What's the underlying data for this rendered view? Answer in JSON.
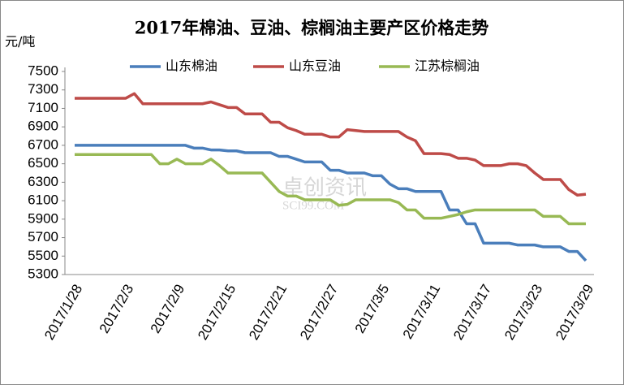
{
  "chart_data": {
    "type": "line",
    "title": "2017年棉油、豆油、棕榈油主要产区价格走势",
    "y_label": "元/吨",
    "watermark": [
      "卓创资讯",
      "SCI99.COM"
    ],
    "categories": [
      "2017/1/28",
      null,
      null,
      null,
      null,
      null,
      "2017/2/3",
      null,
      null,
      null,
      null,
      null,
      "2017/2/9",
      null,
      null,
      null,
      null,
      null,
      "2017/2/15",
      null,
      null,
      null,
      null,
      null,
      "2017/2/21",
      null,
      null,
      null,
      null,
      null,
      "2017/2/27",
      null,
      null,
      null,
      null,
      null,
      "2017/3/5",
      null,
      null,
      null,
      null,
      null,
      "2017/3/11",
      null,
      null,
      null,
      null,
      null,
      "2017/3/17",
      null,
      null,
      null,
      null,
      null,
      "2017/3/23",
      null,
      null,
      null,
      null,
      null,
      "2017/3/29"
    ],
    "series": [
      {
        "name": "山东棉油",
        "color": "#4a7ebb",
        "values": [
          6700,
          6700,
          6700,
          6700,
          6700,
          6700,
          6700,
          6700,
          6700,
          6700,
          6700,
          6700,
          6700,
          6700,
          6670,
          6670,
          6650,
          6650,
          6640,
          6640,
          6620,
          6620,
          6620,
          6620,
          6580,
          6580,
          6550,
          6520,
          6520,
          6520,
          6430,
          6430,
          6400,
          6400,
          6400,
          6370,
          6370,
          6280,
          6230,
          6230,
          6200,
          6200,
          6200,
          6200,
          6000,
          6000,
          5850,
          5850,
          5640,
          5640,
          5640,
          5640,
          5620,
          5620,
          5620,
          5600,
          5600,
          5600,
          5550,
          5550,
          5450
        ]
      },
      {
        "name": "山东豆油",
        "color": "#be4b48",
        "values": [
          7210,
          7210,
          7210,
          7210,
          7210,
          7210,
          7210,
          7260,
          7150,
          7150,
          7150,
          7150,
          7150,
          7150,
          7150,
          7150,
          7170,
          7140,
          7110,
          7110,
          7040,
          7040,
          7040,
          6950,
          6950,
          6890,
          6860,
          6820,
          6820,
          6820,
          6790,
          6790,
          6870,
          6860,
          6850,
          6850,
          6850,
          6850,
          6850,
          6790,
          6750,
          6610,
          6610,
          6610,
          6600,
          6560,
          6560,
          6540,
          6480,
          6480,
          6480,
          6500,
          6500,
          6480,
          6400,
          6330,
          6330,
          6330,
          6220,
          6160,
          6170
        ]
      },
      {
        "name": "江苏棕榈油",
        "color": "#98b954",
        "values": [
          6600,
          6600,
          6600,
          6600,
          6600,
          6600,
          6600,
          6600,
          6600,
          6600,
          6500,
          6500,
          6550,
          6500,
          6500,
          6500,
          6550,
          6480,
          6400,
          6400,
          6400,
          6400,
          6400,
          6300,
          6200,
          6150,
          6150,
          6110,
          6110,
          6110,
          6110,
          6050,
          6060,
          6110,
          6110,
          6110,
          6110,
          6110,
          6080,
          6000,
          6000,
          5910,
          5910,
          5910,
          5930,
          5950,
          5980,
          6000,
          6000,
          6000,
          6000,
          6000,
          6000,
          6000,
          6000,
          5930,
          5930,
          5930,
          5850,
          5850,
          5850
        ]
      }
    ],
    "ylim": [
      5300,
      7500
    ],
    "yticks": [
      5300,
      5500,
      5700,
      5900,
      6100,
      6300,
      6500,
      6700,
      6900,
      7100,
      7300,
      7500
    ],
    "grid": false
  }
}
